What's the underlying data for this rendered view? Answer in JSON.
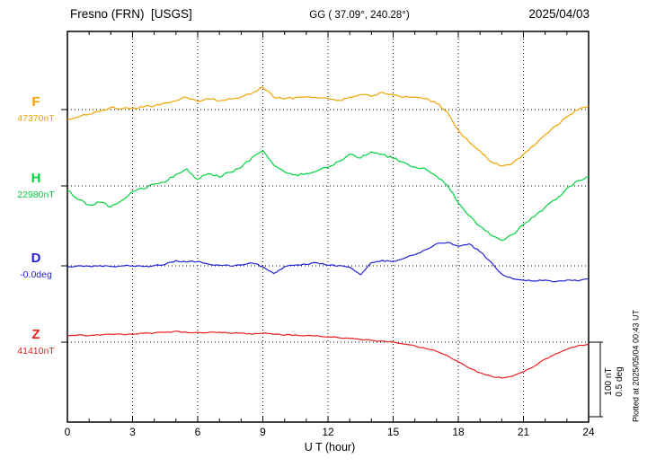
{
  "header": {
    "station": "Fresno (FRN)  [USGS]",
    "coords": "GG ( 37.09°, 240.28°)",
    "date": "2025/04/03"
  },
  "footer": {
    "xlabel": "U T (hour)",
    "plotted_at": "Plotted at 2025/05/04 00:43 UT"
  },
  "scale_bar": {
    "labels": [
      "100 nT",
      "0.5 deg"
    ]
  },
  "chart_data": {
    "type": "line",
    "title": "Fresno (FRN) [USGS]",
    "xlabel": "U T (hour)",
    "x_ticks": [
      0,
      3,
      6,
      9,
      12,
      15,
      18,
      21,
      24
    ],
    "xlim": [
      0,
      24
    ],
    "grid": true,
    "scale": {
      "nT_per_division": 100,
      "deg_per_division": 0.5
    },
    "x_hours": [
      0,
      0.5,
      1,
      1.5,
      2,
      2.5,
      3,
      3.5,
      4,
      4.5,
      5,
      5.5,
      6,
      6.5,
      7,
      7.5,
      8,
      8.5,
      9,
      9.5,
      10,
      10.5,
      11,
      11.5,
      12,
      12.5,
      13,
      13.5,
      14,
      14.5,
      15,
      15.5,
      16,
      16.5,
      17,
      17.5,
      18,
      18.5,
      19,
      19.5,
      20,
      20.5,
      21,
      21.5,
      22,
      22.5,
      23,
      23.5,
      24
    ],
    "series": [
      {
        "name": "F",
        "baseline_label": "47370nT",
        "baseline_value": 47370,
        "units": "nT",
        "color": "#f2a200",
        "offsets": [
          -26,
          -19,
          -12,
          -5,
          5,
          2,
          5,
          7,
          10,
          17,
          24,
          33,
          21,
          29,
          24,
          29,
          33,
          43,
          60,
          33,
          29,
          31,
          33,
          31,
          29,
          24,
          33,
          40,
          36,
          45,
          38,
          33,
          33,
          29,
          17,
          -7,
          -55,
          -86,
          -110,
          -138,
          -150,
          -143,
          -119,
          -95,
          -67,
          -43,
          -19,
          0,
          10
        ]
      },
      {
        "name": "H",
        "baseline_label": "22980nT",
        "baseline_value": 22980,
        "units": "nT",
        "color": "#00d23c",
        "offsets": [
          -12,
          -36,
          -50,
          -43,
          -55,
          -40,
          -14,
          -7,
          5,
          10,
          31,
          45,
          17,
          33,
          24,
          36,
          50,
          74,
          93,
          55,
          36,
          29,
          33,
          40,
          50,
          64,
          83,
          74,
          90,
          83,
          74,
          62,
          50,
          45,
          26,
          2,
          -45,
          -79,
          -107,
          -131,
          -145,
          -129,
          -102,
          -81,
          -57,
          -36,
          -7,
          14,
          26
        ]
      },
      {
        "name": "D",
        "baseline_label": "-0.0deg",
        "baseline_value": -0.0,
        "units": "deg",
        "color": "#2222d6",
        "offsets": [
          -0.01,
          0,
          -0.01,
          0,
          -0.01,
          0,
          0,
          -0.01,
          0,
          0.02,
          0.07,
          0.05,
          0.06,
          0.02,
          0.01,
          0,
          0.01,
          0.04,
          -0.01,
          -0.1,
          -0.01,
          0.01,
          0.02,
          0.04,
          0.01,
          0,
          -0.02,
          -0.12,
          0.04,
          0.07,
          0.06,
          0.1,
          0.15,
          0.21,
          0.29,
          0.31,
          0.26,
          0.29,
          0.19,
          0.05,
          -0.11,
          -0.17,
          -0.19,
          -0.2,
          -0.19,
          -0.21,
          -0.19,
          -0.2,
          -0.17
        ]
      },
      {
        "name": "Z",
        "baseline_label": "41410nT",
        "baseline_value": 41410,
        "units": "nT",
        "color": "#ea2020",
        "offsets": [
          17,
          19,
          17,
          19,
          21,
          21,
          21,
          24,
          24,
          26,
          29,
          26,
          26,
          26,
          26,
          24,
          24,
          21,
          24,
          21,
          19,
          19,
          17,
          17,
          14,
          12,
          10,
          7,
          5,
          2,
          0,
          -5,
          -10,
          -17,
          -24,
          -36,
          -52,
          -69,
          -81,
          -90,
          -95,
          -90,
          -79,
          -64,
          -45,
          -31,
          -19,
          -10,
          -5
        ]
      }
    ]
  }
}
